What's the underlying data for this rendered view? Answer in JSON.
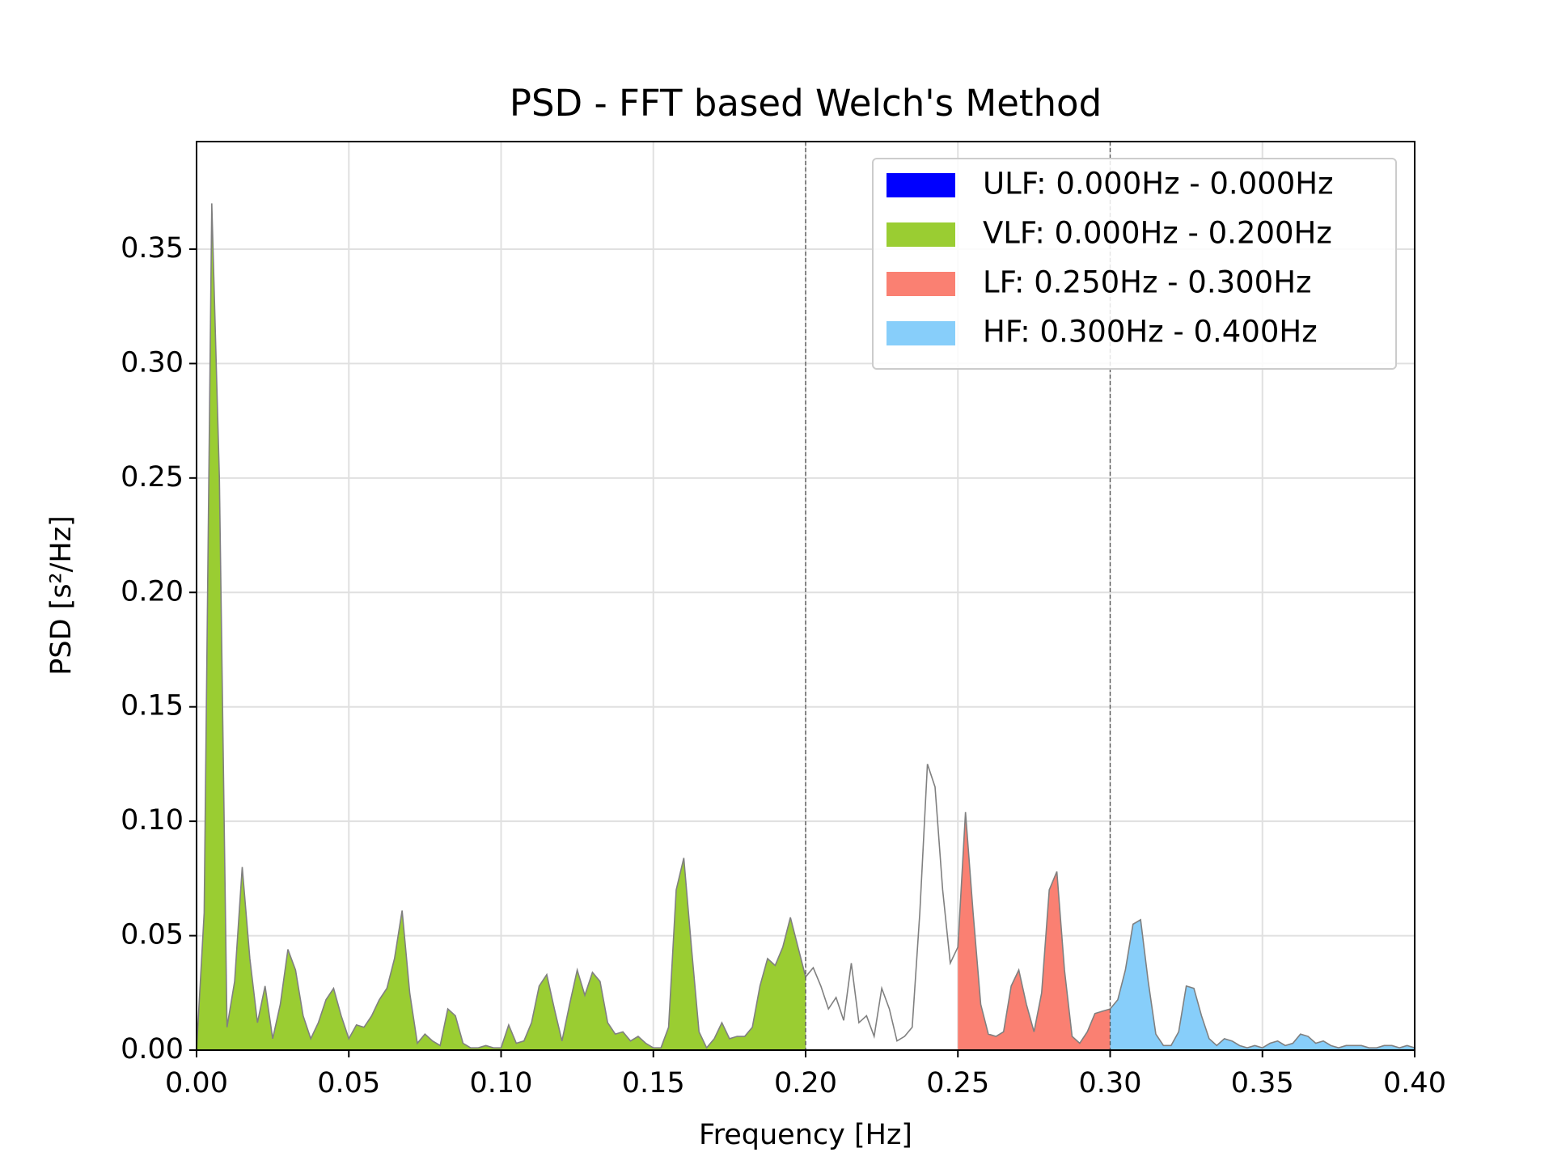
{
  "chart_data": {
    "type": "area_bands",
    "title": "PSD - FFT based Welch's Method",
    "xlabel": "Frequency [Hz]",
    "ylabel": "PSD [s²/Hz]",
    "line_color": "#808080",
    "x": [
      0,
      0.0025,
      0.005,
      0.0075,
      0.01,
      0.0125,
      0.015,
      0.0175,
      0.02,
      0.0225,
      0.025,
      0.0275,
      0.03,
      0.0325,
      0.035,
      0.0375,
      0.04,
      0.0425,
      0.045,
      0.0475,
      0.05,
      0.0525,
      0.055,
      0.0575,
      0.06,
      0.0625,
      0.065,
      0.0675,
      0.07,
      0.0725,
      0.075,
      0.0775,
      0.08,
      0.0825,
      0.085,
      0.0875,
      0.09,
      0.0925,
      0.095,
      0.0975,
      0.1,
      0.1025,
      0.105,
      0.1075,
      0.11,
      0.1125,
      0.115,
      0.1175,
      0.12,
      0.1225,
      0.125,
      0.1275,
      0.13,
      0.1325,
      0.135,
      0.1375,
      0.14,
      0.1425,
      0.145,
      0.1475,
      0.15,
      0.1525,
      0.155,
      0.1575,
      0.16,
      0.1625,
      0.165,
      0.1675,
      0.17,
      0.1725,
      0.175,
      0.1775,
      0.18,
      0.1825,
      0.185,
      0.1875,
      0.19,
      0.1925,
      0.195,
      0.1975,
      0.2,
      0.2025,
      0.205,
      0.2075,
      0.21,
      0.2125,
      0.215,
      0.2175,
      0.22,
      0.2225,
      0.225,
      0.2275,
      0.23,
      0.2325,
      0.235,
      0.2375,
      0.24,
      0.2425,
      0.245,
      0.2475,
      0.25,
      0.2525,
      0.255,
      0.2575,
      0.26,
      0.2625,
      0.265,
      0.2675,
      0.27,
      0.2725,
      0.275,
      0.2775,
      0.28,
      0.2825,
      0.285,
      0.2875,
      0.29,
      0.2925,
      0.295,
      0.2975,
      0.3,
      0.3025,
      0.305,
      0.3075,
      0.31,
      0.3125,
      0.315,
      0.3175,
      0.32,
      0.3225,
      0.325,
      0.3275,
      0.33,
      0.3325,
      0.335,
      0.3375,
      0.34,
      0.3425,
      0.345,
      0.3475,
      0.35,
      0.3525,
      0.355,
      0.3575,
      0.36,
      0.3625,
      0.365,
      0.3675,
      0.37,
      0.3725,
      0.375,
      0.3775,
      0.38,
      0.3825,
      0.385,
      0.3875,
      0.39,
      0.3925,
      0.395,
      0.3975,
      0.4
    ],
    "values": [
      0,
      0.06,
      0.37,
      0.25,
      0.01,
      0.03,
      0.08,
      0.04,
      0.012,
      0.028,
      0.005,
      0.02,
      0.044,
      0.035,
      0.015,
      0.005,
      0.012,
      0.022,
      0.027,
      0.015,
      0.005,
      0.011,
      0.01,
      0.015,
      0.022,
      0.027,
      0.04,
      0.061,
      0.025,
      0.003,
      0.007,
      0.004,
      0.002,
      0.018,
      0.015,
      0.003,
      0.001,
      0.001,
      0.002,
      0.001,
      0.001,
      0.011,
      0.003,
      0.004,
      0.012,
      0.028,
      0.033,
      0.018,
      0.004,
      0.02,
      0.035,
      0.024,
      0.034,
      0.03,
      0.012,
      0.007,
      0.008,
      0.004,
      0.006,
      0.003,
      0.001,
      0.001,
      0.01,
      0.07,
      0.084,
      0.045,
      0.008,
      0.001,
      0.005,
      0.012,
      0.005,
      0.006,
      0.006,
      0.01,
      0.028,
      0.04,
      0.037,
      0.045,
      0.058,
      0.045,
      0.032,
      0.036,
      0.028,
      0.018,
      0.023,
      0.013,
      0.038,
      0.012,
      0.015,
      0.006,
      0.027,
      0.018,
      0.004,
      0.006,
      0.01,
      0.06,
      0.125,
      0.115,
      0.07,
      0.038,
      0.045,
      0.104,
      0.06,
      0.02,
      0.007,
      0.006,
      0.008,
      0.028,
      0.035,
      0.02,
      0.008,
      0.025,
      0.07,
      0.078,
      0.035,
      0.006,
      0.003,
      0.008,
      0.016,
      0.017,
      0.018,
      0.022,
      0.035,
      0.055,
      0.057,
      0.03,
      0.007,
      0.002,
      0.002,
      0.008,
      0.028,
      0.027,
      0.015,
      0.005,
      0.002,
      0.005,
      0.004,
      0.002,
      0.001,
      0.002,
      0.001,
      0.003,
      0.004,
      0.002,
      0.003,
      0.007,
      0.006,
      0.003,
      0.004,
      0.002,
      0.001,
      0.002,
      0.002,
      0.002,
      0.001,
      0.001,
      0.002,
      0.002,
      0.001,
      0.002,
      0.001
    ],
    "bands": [
      {
        "name": "ULF: 0.000Hz - 0.000Hz",
        "color": "#0000ff",
        "range": [
          0,
          0
        ]
      },
      {
        "name": "VLF: 0.000Hz - 0.200Hz",
        "color": "#9acd32",
        "range": [
          0,
          0.2
        ]
      },
      {
        "name": "LF: 0.250Hz - 0.300Hz",
        "color": "#fa8072",
        "range": [
          0.25,
          0.3
        ]
      },
      {
        "name": "HF: 0.300Hz - 0.400Hz",
        "color": "#87cefa",
        "range": [
          0.3,
          0.4
        ]
      }
    ],
    "vlines": [
      0.2,
      0.3
    ],
    "xlim": [
      0,
      0.4
    ],
    "ylim": [
      0,
      0.397
    ],
    "xticks": [
      {
        "value": 0,
        "label": "0.00"
      },
      {
        "value": 0.05,
        "label": "0.05"
      },
      {
        "value": 0.1,
        "label": "0.10"
      },
      {
        "value": 0.15,
        "label": "0.15"
      },
      {
        "value": 0.2,
        "label": "0.20"
      },
      {
        "value": 0.25,
        "label": "0.25"
      },
      {
        "value": 0.3,
        "label": "0.30"
      },
      {
        "value": 0.35,
        "label": "0.35"
      },
      {
        "value": 0.4,
        "label": "0.40"
      }
    ],
    "yticks": [
      {
        "value": 0,
        "label": "0.00"
      },
      {
        "value": 0.05,
        "label": "0.05"
      },
      {
        "value": 0.1,
        "label": "0.10"
      },
      {
        "value": 0.15,
        "label": "0.15"
      },
      {
        "value": 0.2,
        "label": "0.20"
      },
      {
        "value": 0.25,
        "label": "0.25"
      },
      {
        "value": 0.3,
        "label": "0.30"
      },
      {
        "value": 0.35,
        "label": "0.35"
      }
    ],
    "grid": true,
    "legend": "upper right"
  }
}
